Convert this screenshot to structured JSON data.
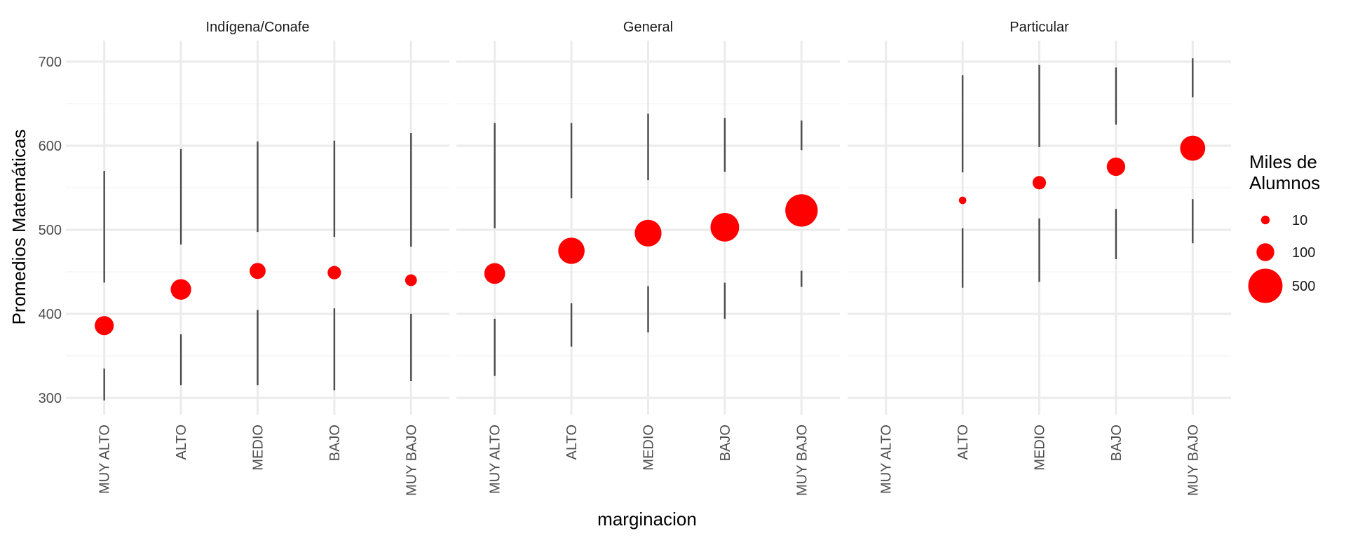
{
  "chart_data": {
    "type": "scatter",
    "title": "",
    "xlabel": "marginacion",
    "ylabel": "Promedios Matemáticas",
    "categories": [
      "MUY ALTO",
      "ALTO",
      "MEDIO",
      "BAJO",
      "MUY BAJO"
    ],
    "y_ticks": [
      300,
      400,
      500,
      600,
      700
    ],
    "ylim": [
      280,
      725
    ],
    "grid": true,
    "point_color": "#FF0000",
    "range_color": "#4D4D4D",
    "legend": {
      "title_lines": [
        "Miles de",
        "Alumnos"
      ],
      "entries": [
        {
          "label": "10",
          "value": 10
        },
        {
          "label": "100",
          "value": 100
        },
        {
          "label": "500",
          "value": 500
        }
      ],
      "position": "right"
    },
    "panels": [
      {
        "name": "Indígena/Conafe",
        "points": [
          {
            "category": "MUY ALTO",
            "mean": 386,
            "low": 297,
            "high": 570,
            "alumnos": 120
          },
          {
            "category": "ALTO",
            "mean": 429,
            "low": 315,
            "high": 596,
            "alumnos": 145
          },
          {
            "category": "MEDIO",
            "mean": 451,
            "low": 315,
            "high": 605,
            "alumnos": 75
          },
          {
            "category": "BAJO",
            "mean": 449,
            "low": 309,
            "high": 606,
            "alumnos": 45
          },
          {
            "category": "MUY BAJO",
            "mean": 440,
            "low": 320,
            "high": 615,
            "alumnos": 30
          }
        ]
      },
      {
        "name": "General",
        "points": [
          {
            "category": "MUY ALTO",
            "mean": 448,
            "low": 326,
            "high": 627,
            "alumnos": 150
          },
          {
            "category": "ALTO",
            "mean": 475,
            "low": 361,
            "high": 627,
            "alumnos": 270
          },
          {
            "category": "MEDIO",
            "mean": 496,
            "low": 378,
            "high": 638,
            "alumnos": 280
          },
          {
            "category": "BAJO",
            "mean": 503,
            "low": 394,
            "high": 633,
            "alumnos": 330
          },
          {
            "category": "MUY BAJO",
            "mean": 523,
            "low": 432,
            "high": 630,
            "alumnos": 440
          }
        ]
      },
      {
        "name": "Particular",
        "points": [
          {
            "category": "ALTO",
            "mean": 535,
            "low": 431,
            "high": 684,
            "alumnos": 5
          },
          {
            "category": "MEDIO",
            "mean": 556,
            "low": 438,
            "high": 696,
            "alumnos": 45
          },
          {
            "category": "BAJO",
            "mean": 575,
            "low": 465,
            "high": 693,
            "alumnos": 110
          },
          {
            "category": "MUY BAJO",
            "mean": 597,
            "low": 484,
            "high": 704,
            "alumnos": 240
          }
        ]
      }
    ]
  }
}
